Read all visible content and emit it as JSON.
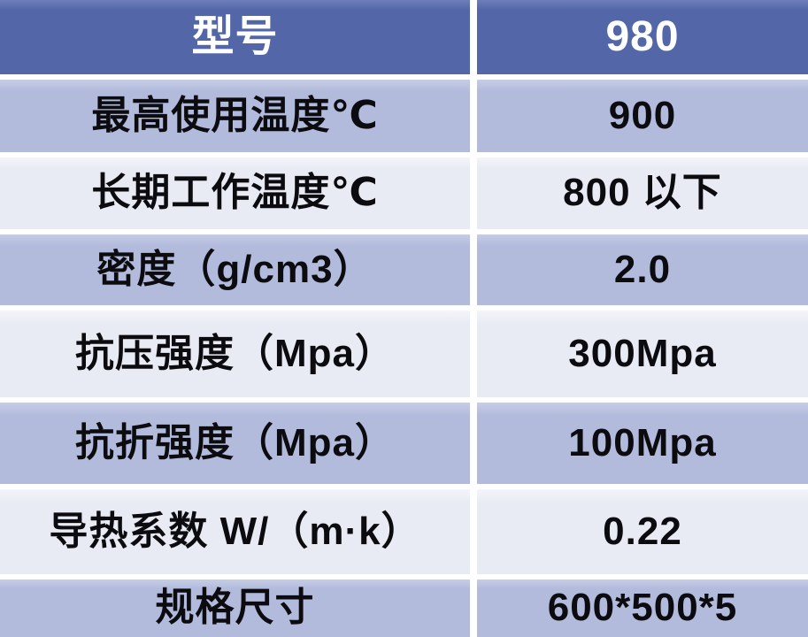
{
  "table": {
    "header": {
      "label": "型号",
      "value": "980"
    },
    "rows": [
      {
        "label": "最高使用温度℃",
        "value": "900"
      },
      {
        "label": "长期工作温度℃",
        "value": "800 以下"
      },
      {
        "label": "密度（g/cm3）",
        "value": "2.0"
      },
      {
        "label": "抗压强度（Mpa）",
        "value": "300Mpa"
      },
      {
        "label": "抗折强度（Mpa）",
        "value": "100Mpa"
      },
      {
        "label": "导热系数 W/（m·k）",
        "value": "0.22"
      },
      {
        "label": "规格尺寸",
        "value": "600*500*5"
      }
    ]
  },
  "colors": {
    "header_bg": "#5266a8",
    "header_text": "#ffffff",
    "row_medium_bg": "#b2bbdc",
    "row_light_bg": "#e9ebf4",
    "cell_text": "#0c0c10",
    "gap": "#ffffff"
  }
}
